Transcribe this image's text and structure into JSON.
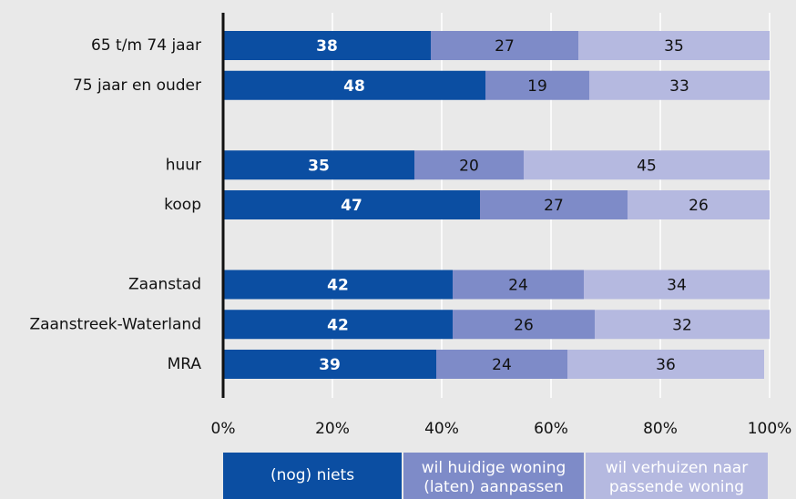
{
  "chart_data": {
    "type": "stacked-barh",
    "categories": [
      "65 t/m 74 jaar",
      "75 jaar en ouder",
      null,
      "huur",
      "koop",
      null,
      "Zaanstad",
      "Zaanstreek-Waterland",
      "MRA"
    ],
    "series": [
      {
        "name": "(nog) niets",
        "color": "#0b4ea2",
        "values": [
          38,
          48,
          null,
          35,
          47,
          null,
          42,
          42,
          39
        ]
      },
      {
        "name": "wil huidige woning (laten) aanpassen",
        "color": "#7e8bc8",
        "values": [
          27,
          19,
          null,
          20,
          27,
          null,
          24,
          26,
          24
        ]
      },
      {
        "name": "wil verhuizen naar passende woning",
        "color": "#b5b9e0",
        "values": [
          35,
          33,
          null,
          45,
          26,
          null,
          34,
          32,
          36
        ]
      }
    ],
    "xlim": [
      0,
      100
    ],
    "xticks": [
      {
        "value": 0,
        "label": "0%"
      },
      {
        "value": 20,
        "label": "20%"
      },
      {
        "value": 40,
        "label": "40%"
      },
      {
        "value": 60,
        "label": "60%"
      },
      {
        "value": 80,
        "label": "80%"
      },
      {
        "value": 100,
        "label": "100%"
      }
    ],
    "grid": true
  }
}
